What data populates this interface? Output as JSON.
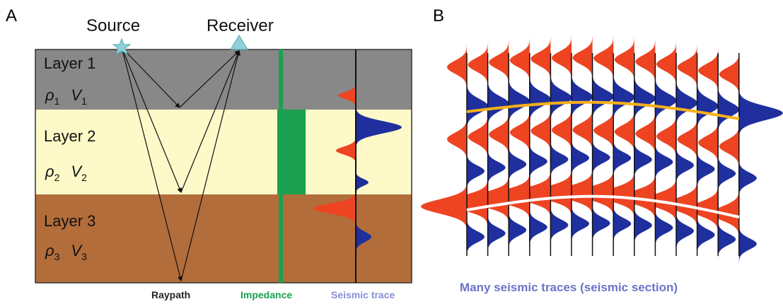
{
  "panel_a": {
    "label": "A",
    "source": "Source",
    "receiver": "Receiver",
    "layers": [
      {
        "label": "Layer 1",
        "density": "ρ",
        "density_sub": "1",
        "velocity": "V",
        "velocity_sub": "1"
      },
      {
        "label": "Layer 2",
        "density": "ρ",
        "density_sub": "2",
        "velocity": "V",
        "velocity_sub": "2"
      },
      {
        "label": "Layer 3",
        "density": "ρ",
        "density_sub": "3",
        "velocity": "V",
        "velocity_sub": "3"
      }
    ],
    "legend": {
      "raypath": "Raypath",
      "impedance": "Impedance",
      "seismic_trace": "Seismic trace"
    }
  },
  "panel_b": {
    "label": "B",
    "caption": "Many seismic traces (seismic section)"
  }
}
